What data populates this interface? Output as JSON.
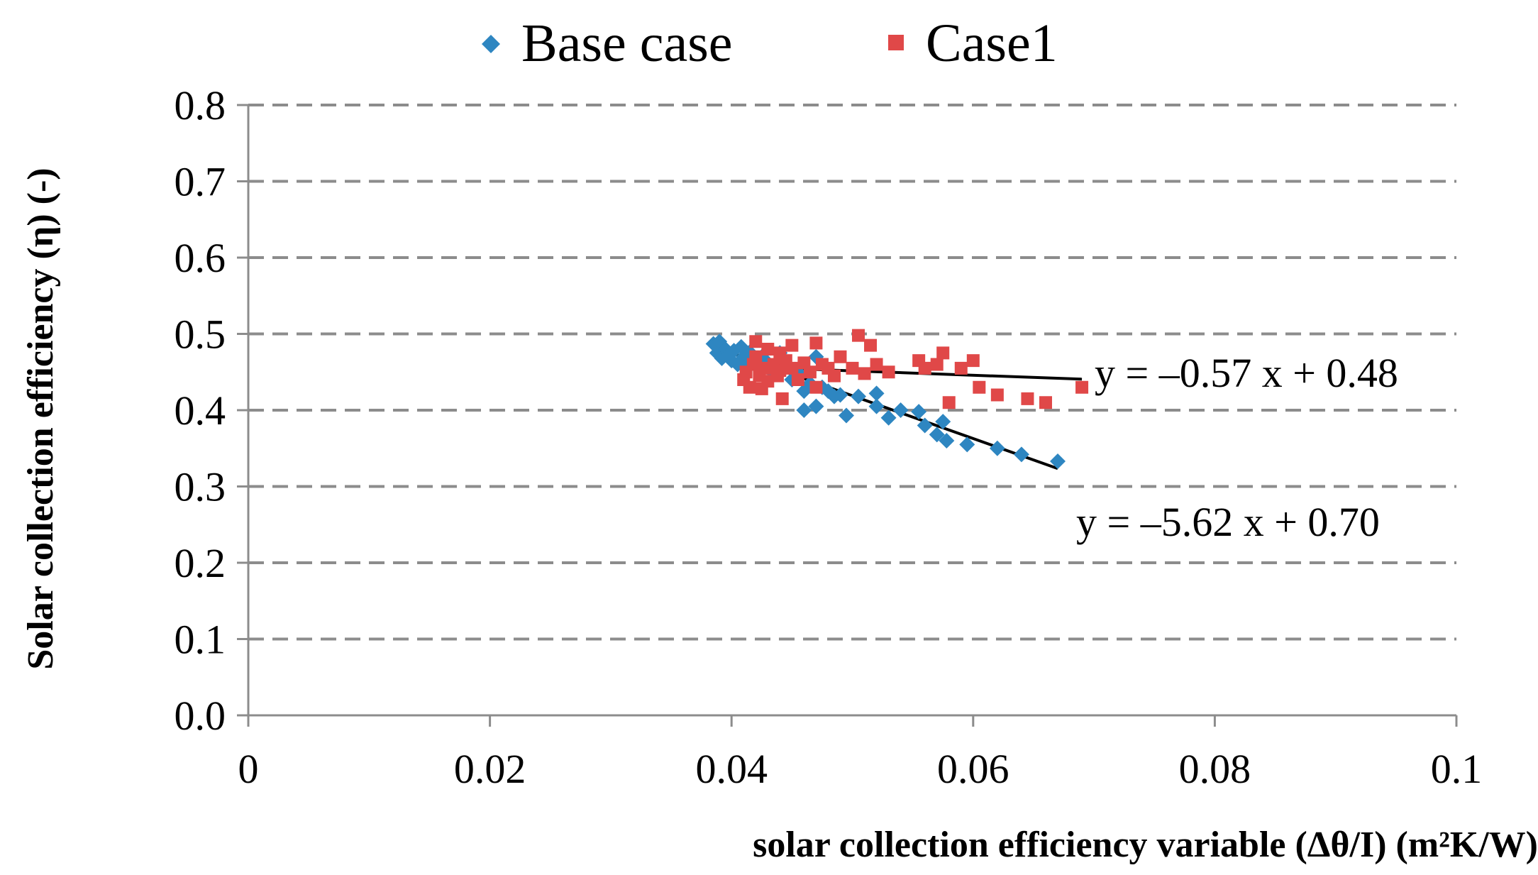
{
  "chart_data": {
    "type": "scatter",
    "title": "",
    "xlabel": "solar collection efficiency variable (Δθ/I) (m²K/W)",
    "ylabel": "Solar collection efficiency (η) (-)",
    "xlim": [
      0,
      0.1
    ],
    "ylim": [
      0,
      0.8
    ],
    "x_ticks": [
      "0",
      "0.02",
      "0.04",
      "0.06",
      "0.08",
      "0.1"
    ],
    "y_ticks": [
      "0.0",
      "0.1",
      "0.2",
      "0.3",
      "0.4",
      "0.5",
      "0.6",
      "0.7",
      "0.8"
    ],
    "grid": "horizontal dashed",
    "legend_position": "top-center",
    "series": [
      {
        "name": "Base case",
        "marker": "diamond",
        "color": "#2e86c1",
        "points": [
          [
            0.0385,
            0.487
          ],
          [
            0.0388,
            0.475
          ],
          [
            0.039,
            0.49
          ],
          [
            0.0392,
            0.468
          ],
          [
            0.0395,
            0.48
          ],
          [
            0.0397,
            0.472
          ],
          [
            0.04,
            0.465
          ],
          [
            0.0402,
            0.478
          ],
          [
            0.0405,
            0.46
          ],
          [
            0.0408,
            0.483
          ],
          [
            0.041,
            0.47
          ],
          [
            0.0412,
            0.458
          ],
          [
            0.0415,
            0.476
          ],
          [
            0.042,
            0.465
          ],
          [
            0.0422,
            0.455
          ],
          [
            0.0425,
            0.47
          ],
          [
            0.043,
            0.462
          ],
          [
            0.0435,
            0.448
          ],
          [
            0.044,
            0.475
          ],
          [
            0.0445,
            0.458
          ],
          [
            0.045,
            0.44
          ],
          [
            0.0455,
            0.45
          ],
          [
            0.046,
            0.425
          ],
          [
            0.046,
            0.4
          ],
          [
            0.0465,
            0.435
          ],
          [
            0.047,
            0.47
          ],
          [
            0.047,
            0.405
          ],
          [
            0.0475,
            0.43
          ],
          [
            0.048,
            0.425
          ],
          [
            0.0485,
            0.418
          ],
          [
            0.049,
            0.42
          ],
          [
            0.0495,
            0.393
          ],
          [
            0.0505,
            0.418
          ],
          [
            0.052,
            0.422
          ],
          [
            0.052,
            0.405
          ],
          [
            0.053,
            0.39
          ],
          [
            0.054,
            0.4
          ],
          [
            0.0555,
            0.398
          ],
          [
            0.056,
            0.38
          ],
          [
            0.057,
            0.368
          ],
          [
            0.0575,
            0.385
          ],
          [
            0.0578,
            0.36
          ],
          [
            0.0595,
            0.355
          ],
          [
            0.062,
            0.35
          ],
          [
            0.064,
            0.342
          ],
          [
            0.067,
            0.333
          ]
        ],
        "trendline": {
          "equation": "y = –5.62 x + 0.70",
          "slope": -5.62,
          "intercept": 0.7,
          "x_range": [
            0.0385,
            0.067
          ]
        }
      },
      {
        "name": "Case1",
        "marker": "square",
        "color": "#e04848",
        "points": [
          [
            0.041,
            0.44
          ],
          [
            0.0412,
            0.45
          ],
          [
            0.0415,
            0.43
          ],
          [
            0.0418,
            0.46
          ],
          [
            0.042,
            0.49
          ],
          [
            0.042,
            0.47
          ],
          [
            0.0423,
            0.445
          ],
          [
            0.0425,
            0.428
          ],
          [
            0.0428,
            0.455
          ],
          [
            0.043,
            0.48
          ],
          [
            0.043,
            0.438
          ],
          [
            0.0435,
            0.46
          ],
          [
            0.0438,
            0.445
          ],
          [
            0.044,
            0.475
          ],
          [
            0.044,
            0.452
          ],
          [
            0.0442,
            0.415
          ],
          [
            0.0445,
            0.465
          ],
          [
            0.045,
            0.485
          ],
          [
            0.045,
            0.455
          ],
          [
            0.0455,
            0.44
          ],
          [
            0.046,
            0.462
          ],
          [
            0.0465,
            0.45
          ],
          [
            0.047,
            0.488
          ],
          [
            0.047,
            0.43
          ],
          [
            0.0475,
            0.46
          ],
          [
            0.048,
            0.455
          ],
          [
            0.0485,
            0.445
          ],
          [
            0.049,
            0.47
          ],
          [
            0.05,
            0.455
          ],
          [
            0.0505,
            0.498
          ],
          [
            0.051,
            0.448
          ],
          [
            0.0515,
            0.485
          ],
          [
            0.052,
            0.46
          ],
          [
            0.053,
            0.45
          ],
          [
            0.0555,
            0.465
          ],
          [
            0.056,
            0.455
          ],
          [
            0.057,
            0.46
          ],
          [
            0.0575,
            0.475
          ],
          [
            0.058,
            0.41
          ],
          [
            0.059,
            0.455
          ],
          [
            0.06,
            0.465
          ],
          [
            0.0605,
            0.43
          ],
          [
            0.062,
            0.42
          ],
          [
            0.0645,
            0.415
          ],
          [
            0.066,
            0.41
          ],
          [
            0.069,
            0.43
          ]
        ],
        "trendline": {
          "equation": "y = –0.57 x + 0.48",
          "slope": -0.57,
          "intercept": 0.48,
          "x_range": [
            0.041,
            0.069
          ]
        }
      }
    ]
  }
}
